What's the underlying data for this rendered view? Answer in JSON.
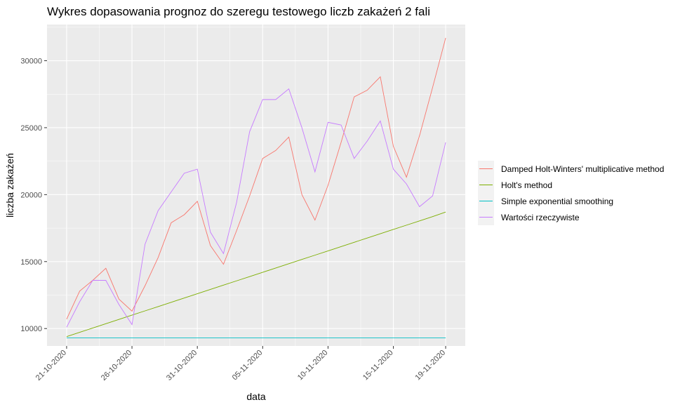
{
  "chart_data": {
    "type": "line",
    "title": "Wykres dopasowania prognoz do szeregu testowego liczb zakażeń 2 fali",
    "xlabel": "data",
    "ylabel": "liczba zakażeń",
    "x_ticks": [
      "21-10-2020",
      "26-10-2020",
      "31-10-2020",
      "05-11-2020",
      "10-11-2020",
      "15-11-2020",
      "19-11-2020"
    ],
    "y_ticks": [
      10000,
      15000,
      20000,
      25000,
      30000
    ],
    "ylim": [
      8700,
      32700
    ],
    "xlim_days": [
      -1.5,
      30.5
    ],
    "grid": true,
    "legend_position": "right",
    "x": [
      "21-10-2020",
      "22-10-2020",
      "23-10-2020",
      "24-10-2020",
      "25-10-2020",
      "26-10-2020",
      "27-10-2020",
      "28-10-2020",
      "29-10-2020",
      "30-10-2020",
      "31-10-2020",
      "01-11-2020",
      "02-11-2020",
      "03-11-2020",
      "04-11-2020",
      "05-11-2020",
      "06-11-2020",
      "07-11-2020",
      "08-11-2020",
      "09-11-2020",
      "10-11-2020",
      "11-11-2020",
      "12-11-2020",
      "13-11-2020",
      "14-11-2020",
      "15-11-2020",
      "16-11-2020",
      "17-11-2020",
      "18-11-2020",
      "19-11-2020"
    ],
    "series": [
      {
        "name": "Damped Holt-Winters' multiplicative method",
        "color": "#F8766D",
        "values": [
          10700,
          12800,
          13600,
          14500,
          12200,
          11300,
          13200,
          15300,
          17900,
          18500,
          19500,
          16200,
          14800,
          17300,
          19900,
          22700,
          23300,
          24300,
          20000,
          18100,
          20700,
          23900,
          27300,
          27800,
          28800,
          23600,
          21300,
          24400,
          28000,
          31700
        ]
      },
      {
        "name": "Holt's method",
        "color": "#7CAE00",
        "values": [
          9400,
          9720,
          10040,
          10360,
          10680,
          11000,
          11320,
          11640,
          11960,
          12280,
          12600,
          12920,
          13240,
          13560,
          13880,
          14200,
          14520,
          14840,
          15160,
          15480,
          15800,
          16120,
          16440,
          16760,
          17080,
          17400,
          17720,
          18040,
          18360,
          18700
        ]
      },
      {
        "name": "Simple exponential smoothing",
        "color": "#00BFC4",
        "values": [
          9300,
          9300,
          9300,
          9300,
          9300,
          9300,
          9300,
          9300,
          9300,
          9300,
          9300,
          9300,
          9300,
          9300,
          9300,
          9300,
          9300,
          9300,
          9300,
          9300,
          9300,
          9300,
          9300,
          9300,
          9300,
          9300,
          9300,
          9300,
          9300,
          9300
        ]
      },
      {
        "name": "Wartości rzeczywiste",
        "color": "#C77CFF",
        "values": [
          10100,
          12000,
          13600,
          13600,
          11800,
          10300,
          16300,
          18800,
          20200,
          21600,
          21900,
          17200,
          15600,
          19400,
          24700,
          27100,
          27100,
          27900,
          25000,
          21700,
          25400,
          25200,
          22700,
          24000,
          25500,
          21900,
          20800,
          19100,
          19900,
          23900
        ]
      }
    ]
  }
}
